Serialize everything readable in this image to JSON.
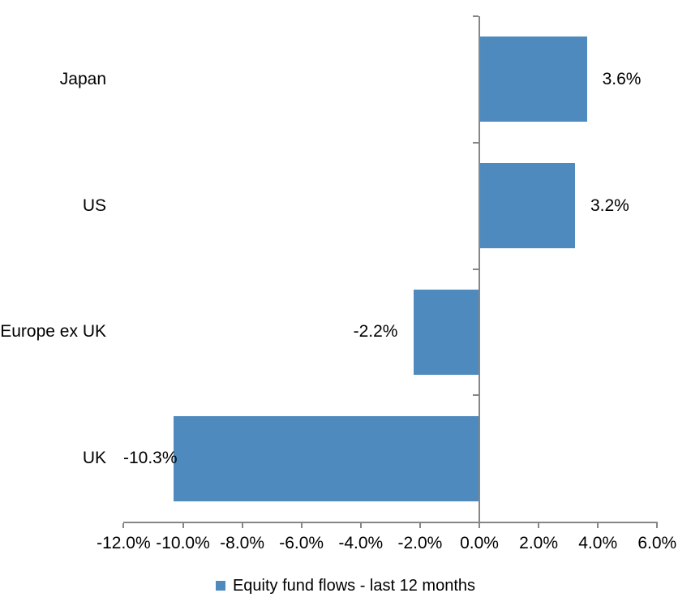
{
  "chart_data": {
    "type": "bar",
    "orientation": "horizontal",
    "title": "",
    "categories": [
      "Japan",
      "US",
      "Europe ex UK",
      "UK"
    ],
    "series": [
      {
        "name": "Equity fund flows - last 12 months",
        "values": [
          3.6,
          3.2,
          -2.2,
          -10.3
        ],
        "data_labels": [
          "3.6%",
          "3.2%",
          "-2.2%",
          "-10.3%"
        ]
      }
    ],
    "xlabel": "",
    "ylabel": "",
    "xlim": [
      -12,
      6
    ],
    "x_ticks": [
      -12,
      -10,
      -8,
      -6,
      -4,
      -2,
      0,
      2,
      4,
      6
    ],
    "x_tick_labels": [
      "-12.0%",
      "-10.0%",
      "-8.0%",
      "-6.0%",
      "-4.0%",
      "-2.0%",
      "0.0%",
      "2.0%",
      "4.0%",
      "6.0%"
    ],
    "grid": false,
    "legend_position": "bottom",
    "data_label_position": "outside-end",
    "colors": {
      "bar": "#4e8abe",
      "axis": "#868686",
      "text": "#000000",
      "background": "#ffffff"
    }
  },
  "legend": {
    "label": "Equity fund flows - last 12 months"
  }
}
